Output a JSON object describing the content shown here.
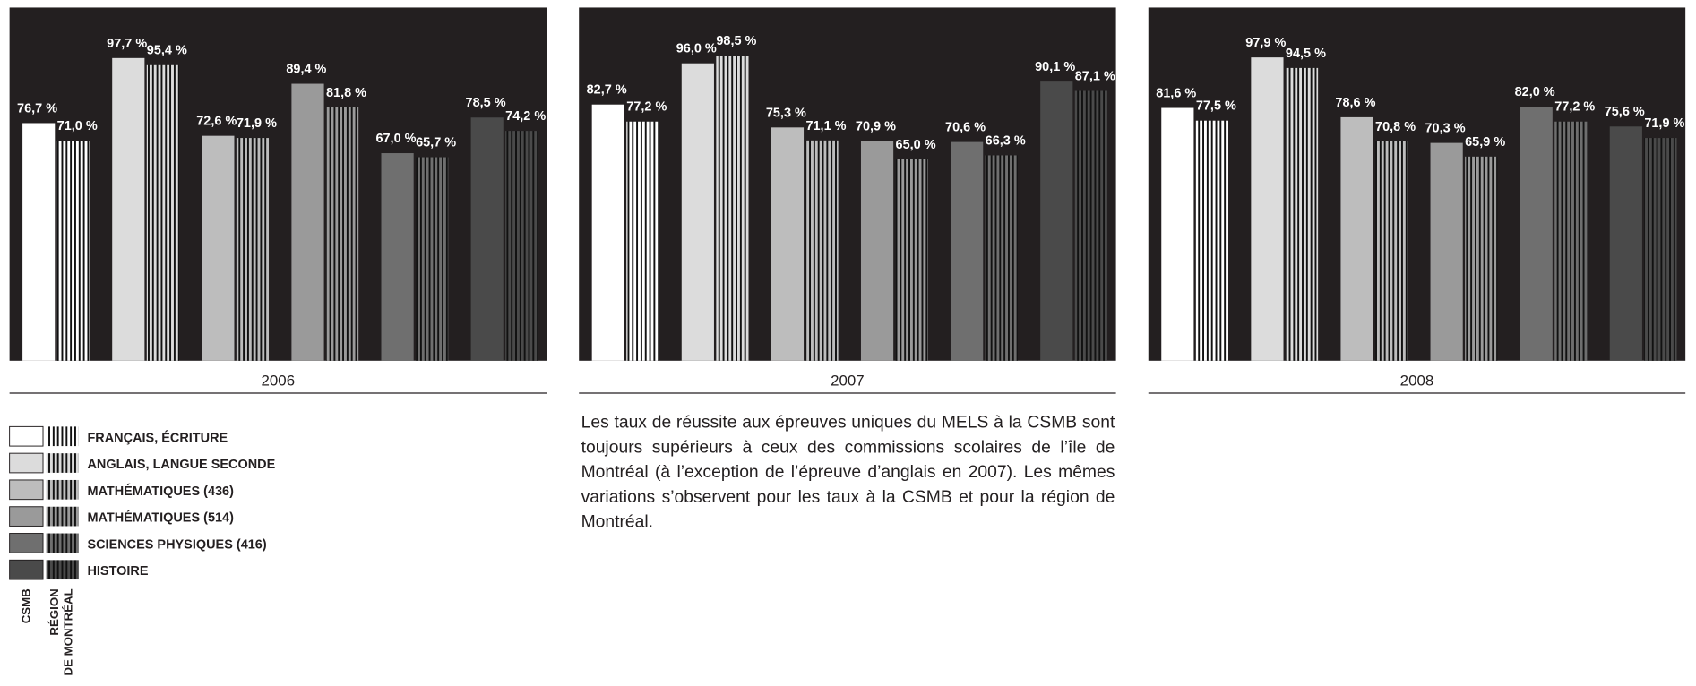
{
  "chart_data": [
    {
      "type": "bar",
      "title": "2006",
      "ylim": [
        0,
        114
      ],
      "series": [
        {
          "values": [
            76.7,
            97.7,
            72.6,
            89.4,
            67.0,
            78.5
          ],
          "value_labels": [
            "76,7 %",
            "97,7 %",
            "72,6 %",
            "89,4 %",
            "67,0 %",
            "78,5 %"
          ]
        },
        {
          "values": [
            71.0,
            95.4,
            71.9,
            81.8,
            65.7,
            74.2
          ],
          "value_labels": [
            "71,0 %",
            "95,4 %",
            "71,9 %",
            "81,8 %",
            "65,7 %",
            "74,2 %"
          ]
        }
      ]
    },
    {
      "type": "bar",
      "title": "2007",
      "ylim": [
        0,
        114
      ],
      "series": [
        {
          "values": [
            82.7,
            96.0,
            75.3,
            70.9,
            70.6,
            90.1
          ],
          "value_labels": [
            "82,7 %",
            "96,0 %",
            "75,3 %",
            "70,9 %",
            "70,6 %",
            "90,1 %"
          ]
        },
        {
          "values": [
            77.2,
            98.5,
            71.1,
            65.0,
            66.3,
            87.1
          ],
          "value_labels": [
            "77,2 %",
            "98,5 %",
            "71,1 %",
            "65,0 %",
            "66,3 %",
            "87,1 %"
          ]
        }
      ]
    },
    {
      "type": "bar",
      "title": "2008",
      "ylim": [
        0,
        114
      ],
      "series": [
        {
          "values": [
            81.6,
            97.9,
            78.6,
            70.3,
            82.0,
            75.6
          ],
          "value_labels": [
            "81,6 %",
            "97,9 %",
            "78,6 %",
            "70,3 %",
            "82,0 %",
            "75,6 %"
          ]
        },
        {
          "values": [
            77.5,
            94.5,
            70.8,
            65.9,
            77.2,
            71.9
          ],
          "value_labels": [
            "77,5 %",
            "94,5 %",
            "70,8 %",
            "65,9 %",
            "77,2 %",
            "71,9 %"
          ]
        }
      ]
    }
  ],
  "legend": {
    "categories": [
      "FRANÇAIS, ÉCRITURE",
      "ANGLAIS, LANGUE SECONDE",
      "MATHÉMATIQUES (436)",
      "MATHÉMATIQUES (514)",
      "SCIENCES PHYSIQUES (416)",
      "HISTOIRE"
    ],
    "colors": [
      "#ffffff",
      "#dcdcdc",
      "#bdbdbd",
      "#9a9a9a",
      "#6f6f6f",
      "#4a4a4a"
    ],
    "series": [
      "CSMB",
      "RÉGION",
      "DE MONTRÉAL"
    ]
  },
  "paragraph": "Les taux de réussite aux épreuves uniques du MELS à la CSMB sont toujours supérieurs à ceux des commissions scolaires de l’île de Montréal (à l’exception de l’épreuve d’anglais en 2007). Les mêmes variations s’observent pour les taux à la CSMB et pour la région de Montréal."
}
